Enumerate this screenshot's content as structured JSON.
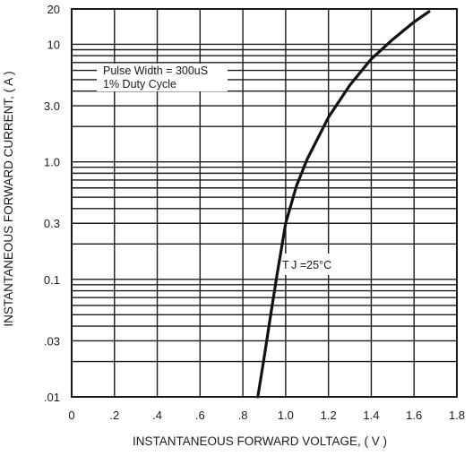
{
  "chart_data": {
    "type": "line",
    "title": "",
    "xlabel": "INSTANTANEOUS FORWARD VOLTAGE, ( V )",
    "ylabel": "INSTANTANEOUS FORWARD CURRENT, ( A )",
    "xlim": [
      0,
      1.8
    ],
    "ylim": [
      0.01,
      20
    ],
    "y_scale": "log",
    "grid": true,
    "x_ticks": [
      0,
      0.2,
      0.4,
      0.6,
      0.8,
      1.0,
      1.2,
      1.4,
      1.6,
      1.8
    ],
    "x_tick_labels": [
      "0",
      ".2",
      ".4",
      ".6",
      ".8",
      "1.0",
      "1.2",
      "1.4",
      "1.6",
      "1.8"
    ],
    "y_ticks": [
      20,
      10,
      3,
      1,
      0.3,
      0.1,
      0.03,
      0.01
    ],
    "y_tick_labels": [
      "20",
      "10",
      "3.0",
      "1.0",
      "0.3",
      "0.1",
      ".03",
      ".01"
    ],
    "annotations": [
      "Pulse Width = 300uS",
      "1% Duty Cycle",
      "T J =25°C"
    ],
    "series": [
      {
        "x": [
          0.87,
          0.9,
          0.93,
          0.96,
          1.0,
          1.05,
          1.1,
          1.2,
          1.3,
          1.4,
          1.5,
          1.6,
          1.67
        ],
        "y": [
          0.01,
          0.022,
          0.05,
          0.11,
          0.3,
          0.62,
          1.05,
          2.4,
          4.5,
          7.5,
          11.0,
          15.5,
          19.0
        ],
        "color": "#111111"
      }
    ]
  }
}
